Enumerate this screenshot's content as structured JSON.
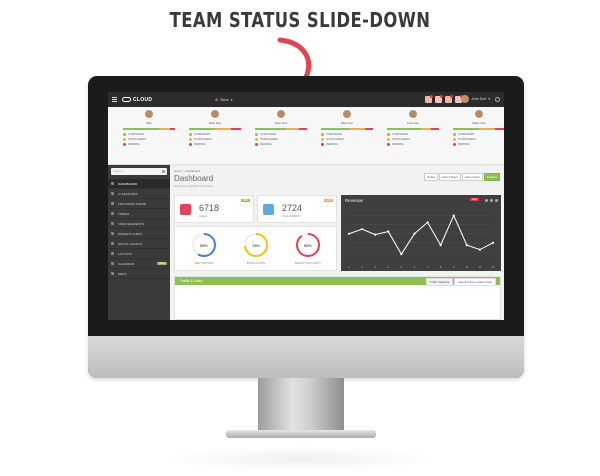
{
  "headline": "TEAM STATUS SLIDE-DOWN",
  "topbar": {
    "brand": "CLOUD",
    "team_status_label": "Team Status",
    "skins_label": "Skins",
    "tooltip": "Toggle Team View",
    "user_name": "John Doe"
  },
  "team": [
    {
      "name": "Max",
      "completed": "",
      "in_progress": "",
      "pending": "",
      "progress": [
        0.7,
        0.2,
        0.1
      ]
    },
    {
      "name": "Nina Doe",
      "completed": "",
      "in_progress": "",
      "pending": "",
      "progress": [
        0.5,
        0.3,
        0.2
      ]
    },
    {
      "name": "Jane Doe",
      "completed": "",
      "in_progress": "",
      "pending": "",
      "progress": [
        0.6,
        0.25,
        0.15
      ]
    },
    {
      "name": "Ellie Doe",
      "completed": "",
      "in_progress": "",
      "pending": "",
      "progress": [
        0.55,
        0.3,
        0.15
      ]
    },
    {
      "name": "Lisa Doe",
      "completed": "",
      "in_progress": "",
      "pending": "",
      "progress": [
        0.65,
        0.2,
        0.15
      ]
    },
    {
      "name": "Kathy Doe",
      "completed": "",
      "in_progress": "",
      "pending": "",
      "progress": [
        0.5,
        0.3,
        0.2
      ]
    }
  ],
  "status_labels": {
    "completed": "COMPLETED",
    "in_progress": "IN PROGRESS",
    "pending": "PENDING"
  },
  "sidebar": {
    "search_placeholder": "Search...",
    "items": [
      {
        "label": "DASHBOARD",
        "badge": ""
      },
      {
        "label": "UI FEATURES",
        "badge": ""
      },
      {
        "label": "FRONTEND THEME",
        "badge": ""
      },
      {
        "label": "TABLES",
        "badge": ""
      },
      {
        "label": "FORM ELEMENTS",
        "badge": ""
      },
      {
        "label": "WIDGETS & BOX",
        "badge": ""
      },
      {
        "label": "SOCIAL CHARTS",
        "badge": ""
      },
      {
        "label": "LAYOUTS",
        "badge": ""
      },
      {
        "label": "CALENDAR",
        "badge": "NEW"
      },
      {
        "label": "MAPS",
        "badge": ""
      }
    ]
  },
  "main": {
    "breadcrumb": "Home > Dashboard",
    "title": "Dashboard",
    "subtitle": "Overview, statistics and more",
    "ranges": [
      "Today",
      "Last 7 Days",
      "Last month",
      "Custom"
    ]
  },
  "stats": [
    {
      "value": "6718",
      "label": "LIKES",
      "badge": "20%",
      "badge_color": "#8cc152",
      "icon": "instagram-icon",
      "icon_color": "#e0415b"
    },
    {
      "value": "2724",
      "label": "FOLLOWERS",
      "badge": "12%",
      "badge_color": "#f0ad4e",
      "icon": "twitter-icon",
      "icon_color": "#5aa9e6"
    }
  ],
  "gauges": [
    {
      "value": "59%",
      "fraction": 0.59,
      "label": "NEW VISITORS",
      "color": "#4a7fd4"
    },
    {
      "value": "73%",
      "fraction": 0.73,
      "label": "BOUNCE RATE",
      "color": "#f4c20d"
    },
    {
      "value": "90%",
      "fraction": 0.9,
      "label": "BRAND POPULARITY",
      "color": "#e0415b"
    }
  ],
  "revenue": {
    "title": "Revenue",
    "badge": "20%"
  },
  "chart_data": {
    "type": "line",
    "title": "Revenue",
    "x": [
      1,
      2,
      3,
      4,
      5,
      6,
      7,
      8,
      9,
      10,
      11,
      12
    ],
    "x_tick_labels": [
      "1",
      "2",
      "3",
      "4",
      "5",
      "6",
      "7",
      "8",
      "9",
      "10",
      "11",
      "12"
    ],
    "y_tick_labels": [
      "20",
      "40",
      "60",
      "80",
      "100"
    ],
    "series": [
      {
        "values": [
          60,
          70,
          58,
          65,
          15,
          60,
          85,
          35,
          100,
          35,
          25,
          40
        ]
      }
    ],
    "ylim": [
      0,
      110
    ],
    "grid": true
  },
  "traffic": {
    "title": "Traffic & Sales",
    "tabs": [
      "Traffic Statistics",
      "Select & Zoom Sales Chart"
    ]
  },
  "colors": {
    "accent": "#8cc152",
    "dark": "#3a3a3a"
  }
}
